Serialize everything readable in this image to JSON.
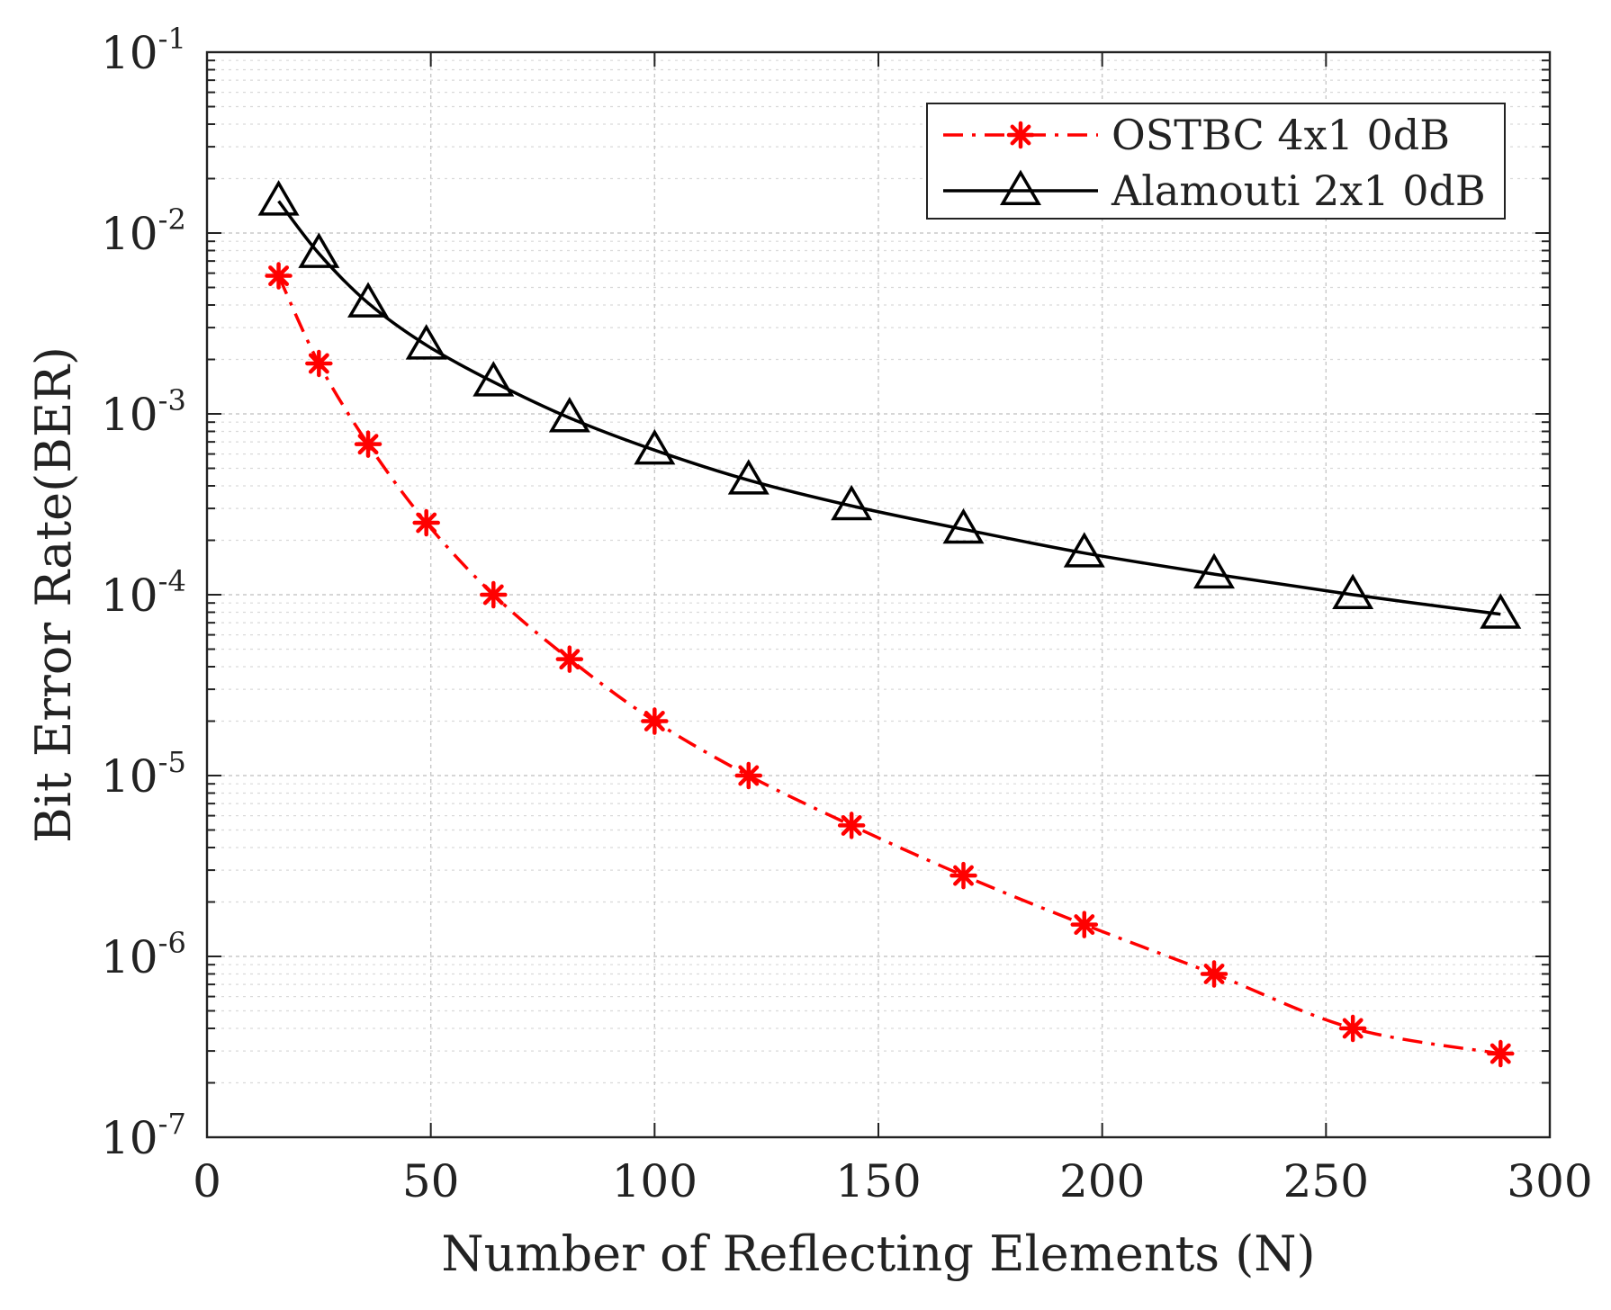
{
  "chart_data": {
    "type": "line",
    "title": "",
    "xlabel": "Number of Reflecting Elements (N)",
    "ylabel": "Bit Error Rate(BER)",
    "xlim": [
      0,
      300
    ],
    "ylim": [
      1e-07,
      0.1
    ],
    "yscale": "log",
    "grid": true,
    "legend_position": "top-right",
    "x_ticks": [
      0,
      50,
      100,
      150,
      200,
      250,
      300
    ],
    "x_tick_labels": [
      "0",
      "50",
      "100",
      "150",
      "200",
      "250",
      "300"
    ],
    "y_ticks": [
      1e-07,
      1e-06,
      1e-05,
      0.0001,
      0.001,
      0.01,
      0.1
    ],
    "y_tick_labels": [
      {
        "base": "10",
        "exp": "-7"
      },
      {
        "base": "10",
        "exp": "-6"
      },
      {
        "base": "10",
        "exp": "-5"
      },
      {
        "base": "10",
        "exp": "-4"
      },
      {
        "base": "10",
        "exp": "-3"
      },
      {
        "base": "10",
        "exp": "-2"
      },
      {
        "base": "10",
        "exp": "-1"
      }
    ],
    "series": [
      {
        "name": "OSTBC 4x1 0dB",
        "color": "#ff0000",
        "line_style": "dash-dot",
        "marker": "asterisk",
        "x": [
          16,
          25,
          36,
          49,
          64,
          81,
          100,
          121,
          144,
          169,
          196,
          225,
          256,
          289
        ],
        "values": [
          0.0058,
          0.0019,
          0.00068,
          0.00025,
          0.0001,
          4.4e-05,
          2e-05,
          1e-05,
          5.3e-06,
          2.8e-06,
          1.5e-06,
          8e-07,
          4e-07,
          2.9e-07
        ]
      },
      {
        "name": "Alamouti 2x1 0dB",
        "color": "#000000",
        "line_style": "solid",
        "marker": "triangle",
        "x": [
          16,
          25,
          36,
          49,
          64,
          81,
          100,
          121,
          144,
          169,
          196,
          225,
          256,
          289
        ],
        "values": [
          0.015,
          0.0077,
          0.0041,
          0.0024,
          0.0015,
          0.00095,
          0.00063,
          0.00043,
          0.00031,
          0.00023,
          0.00017,
          0.00013,
          0.0001,
          7.8e-05
        ]
      }
    ]
  }
}
